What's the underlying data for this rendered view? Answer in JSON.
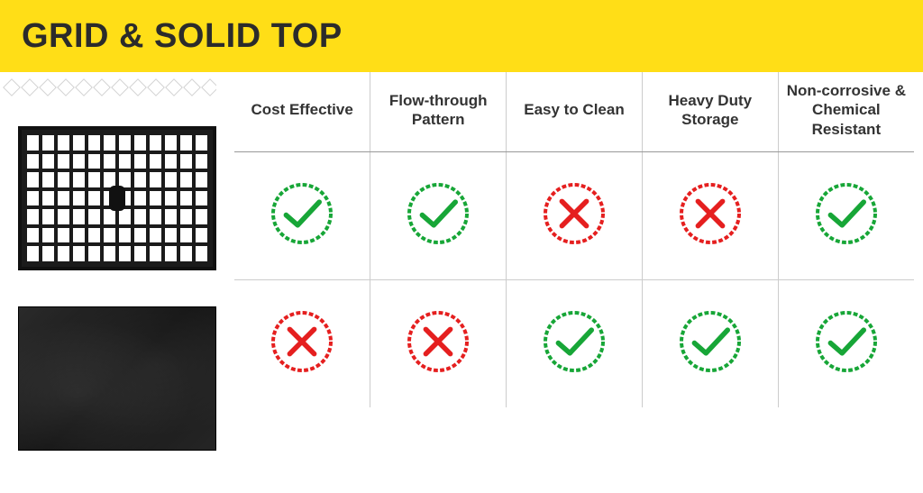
{
  "header": {
    "title": "GRID & SOLID TOP",
    "band_color": "#ffde17",
    "title_color": "#2b2b2b"
  },
  "columns": [
    "Cost Effective",
    "Flow-through Pattern",
    "Easy to Clean",
    "Heavy Duty Storage",
    "Non-corrosive & Chemical Resistant"
  ],
  "rows": [
    {
      "name": "grid-top",
      "values": [
        "yes",
        "yes",
        "no",
        "no",
        "yes"
      ]
    },
    {
      "name": "solid-top",
      "values": [
        "no",
        "no",
        "yes",
        "yes",
        "yes"
      ]
    }
  ],
  "palette": {
    "yes_color": "#17a637",
    "no_color": "#e51f1f",
    "grid_line": "#bcbcbc"
  }
}
